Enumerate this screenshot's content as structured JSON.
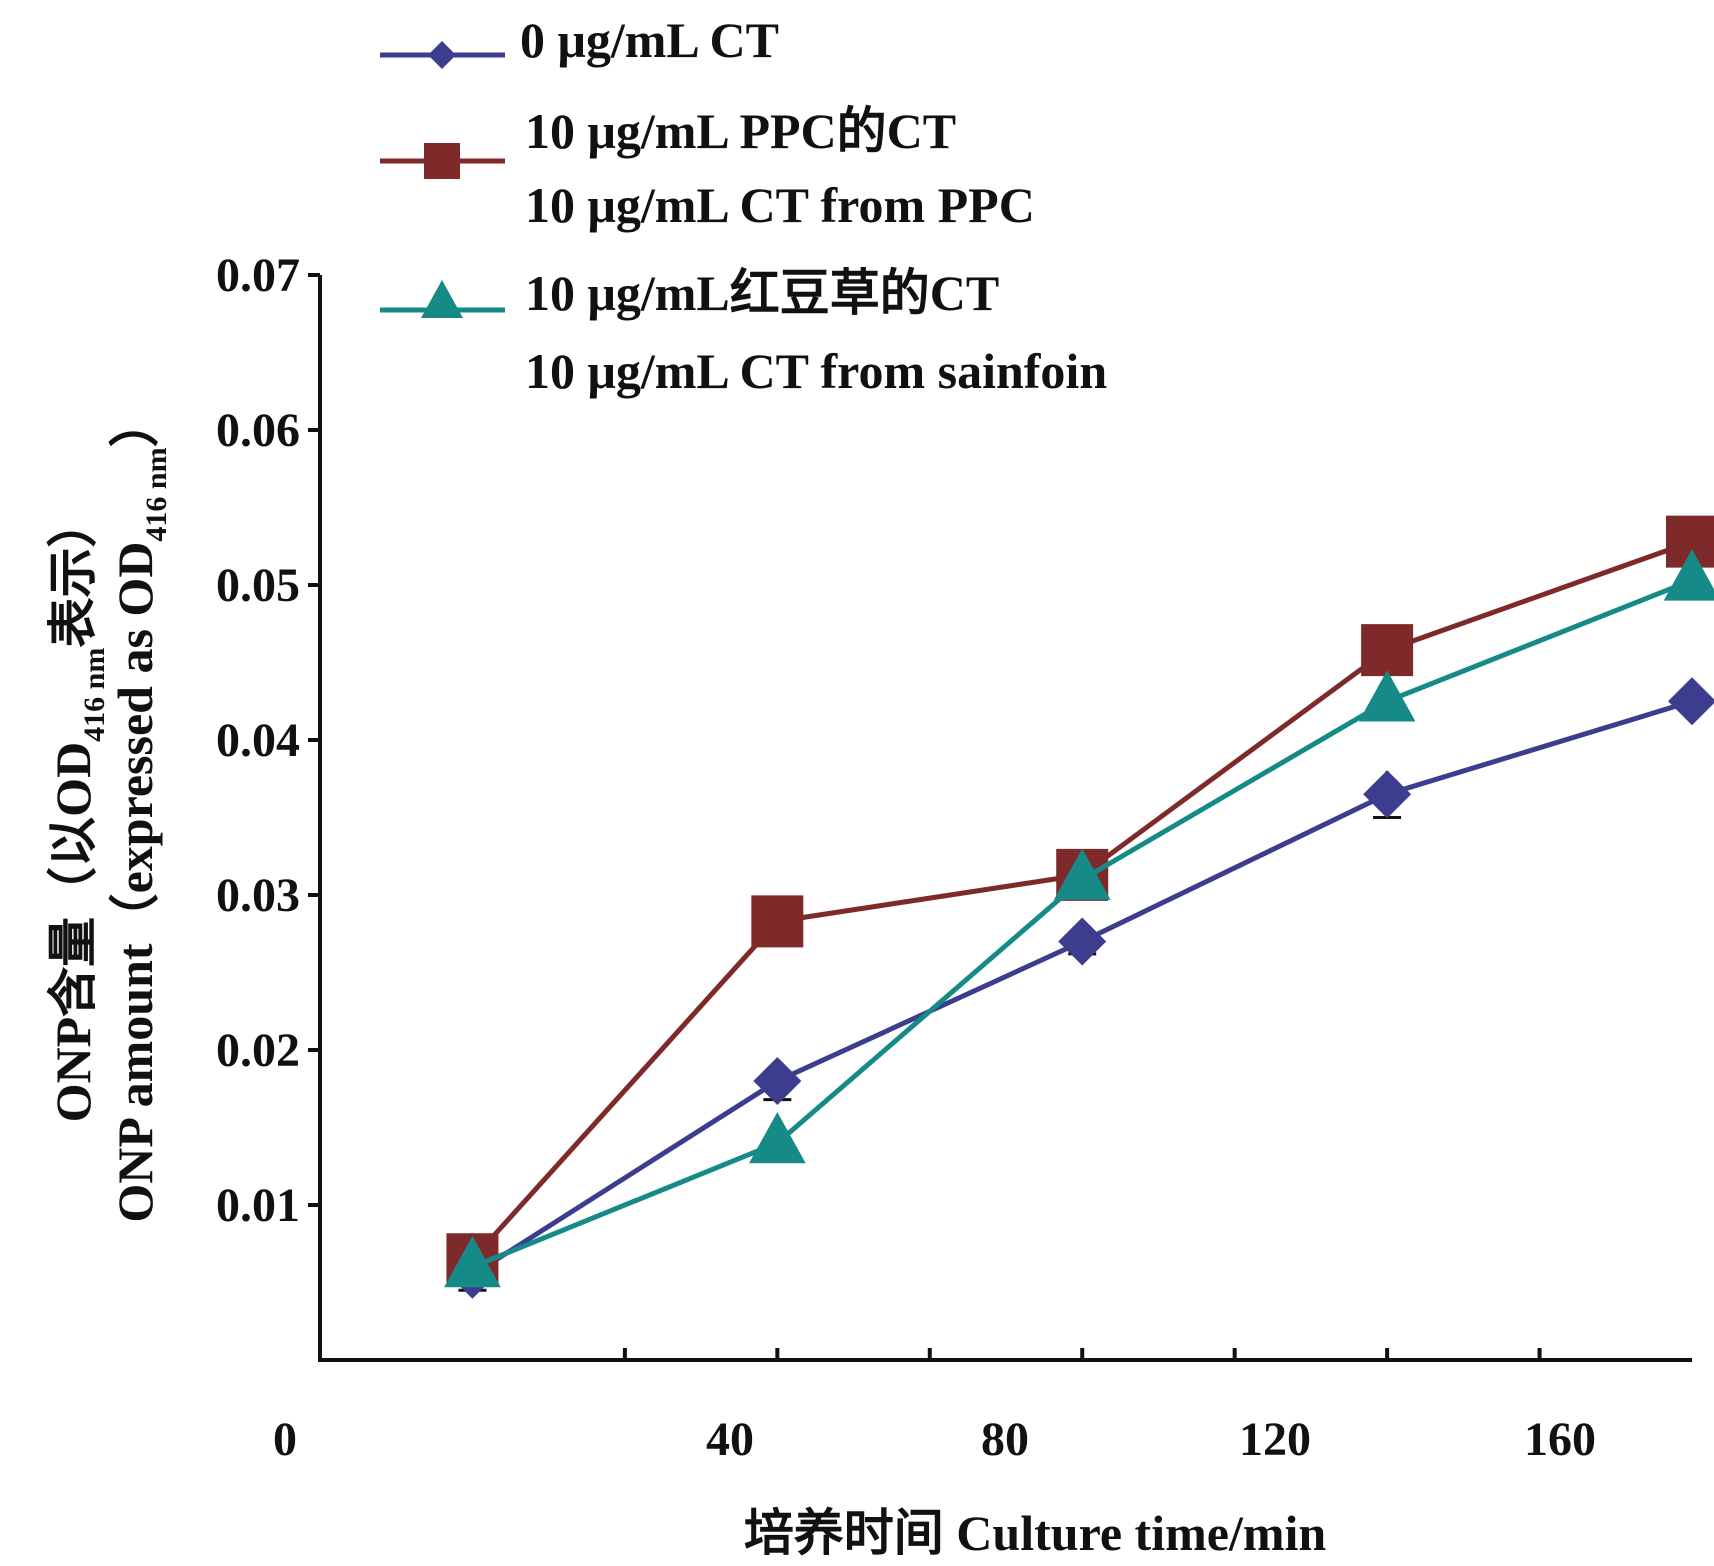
{
  "chart_data": {
    "type": "line",
    "title": "",
    "xlabel": "培养时间 Culture time/min",
    "ylabel_line1": "ONP含量（以OD",
    "ylabel_line1_sub": "416 nm",
    "ylabel_line1_end": "表示）",
    "ylabel_line2": "ONP amount（expressed as OD",
    "ylabel_line2_sub": "416 nm",
    "ylabel_line2_end": "）",
    "x_ticks": [
      0,
      40,
      80,
      120,
      160
    ],
    "x_range": [
      0,
      180
    ],
    "y_ticks": [
      0.01,
      0.02,
      0.03,
      0.04,
      0.05,
      0.06,
      0.07
    ],
    "y_range": [
      0.0,
      0.07
    ],
    "grid": false,
    "legend_position": "top",
    "x": [
      20,
      60,
      100,
      140,
      180
    ],
    "x_tick_labels": [
      "0",
      "40",
      "80",
      "120",
      "160"
    ],
    "series": [
      {
        "name": "0 μg/mL CT",
        "values": [
          0.0055,
          0.018,
          0.027,
          0.0365,
          0.0425
        ],
        "errors": [
          0.001,
          0.0012,
          0.0008,
          0.0015,
          0.0005
        ],
        "color": "#3d3d8f",
        "marker": "diamond"
      },
      {
        "name": "10 μg/mL PPC的CT",
        "name_line2": "10 μg/mL CT from PPC",
        "values": [
          0.0065,
          0.0283,
          0.0313,
          0.0458,
          0.0528
        ],
        "errors": [
          0.0004,
          0.0004,
          0.0004,
          0.0004,
          0.0004
        ],
        "color": "#7f2a2a",
        "marker": "square"
      },
      {
        "name": "10 μg/mL红豆草的CT",
        "name_line2": "10 μg/mL CT from sainfoin",
        "values": [
          0.006,
          0.014,
          0.031,
          0.0425,
          0.0503
        ],
        "errors": [
          0.0004,
          0.0004,
          0.0004,
          0.0004,
          0.0004
        ],
        "color": "#158a86",
        "marker": "triangle"
      }
    ]
  }
}
